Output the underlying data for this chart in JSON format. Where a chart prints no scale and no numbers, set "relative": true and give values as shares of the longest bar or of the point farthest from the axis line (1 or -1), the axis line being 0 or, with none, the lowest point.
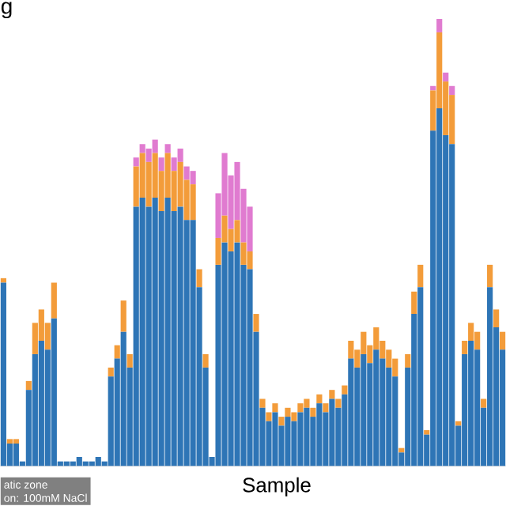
{
  "chart_data": {
    "type": "bar",
    "title": "g",
    "xlabel": "Sample",
    "relative": true,
    "stacked": true,
    "annotations": [
      "atic zone",
      "on: 100mM NaCl"
    ],
    "categories": [
      null,
      null,
      null,
      null,
      null,
      null,
      null,
      null,
      null,
      null,
      null,
      null,
      null,
      null,
      null,
      null,
      null,
      null,
      null,
      null,
      null,
      null,
      null,
      null,
      null,
      null,
      null,
      null,
      null,
      null,
      null,
      null,
      null,
      null,
      null,
      null,
      null,
      null,
      null,
      null,
      null,
      null,
      null,
      null,
      null,
      null,
      null,
      null,
      null,
      null,
      null,
      null,
      null,
      null,
      null,
      null,
      null,
      null,
      null,
      null,
      null,
      null,
      null,
      null,
      null,
      null,
      null,
      null,
      null,
      null,
      null,
      null,
      null,
      null,
      null,
      null,
      null,
      null,
      null,
      null
    ],
    "series": [
      {
        "color": "#2e75b6",
        "values": [
          0.41,
          0.05,
          0.05,
          0.01,
          0.17,
          0.25,
          0.28,
          0.26,
          0.33,
          0.01,
          0.01,
          0.01,
          0.02,
          0.01,
          0.01,
          0.02,
          0.01,
          0.2,
          0.24,
          0.3,
          0.22,
          0.58,
          0.6,
          0.58,
          0.6,
          0.57,
          0.6,
          0.57,
          0.58,
          0.55,
          0.55,
          0.4,
          0.22,
          0.02,
          0.45,
          0.5,
          0.48,
          0.5,
          0.45,
          0.44,
          0.3,
          0.13,
          0.1,
          0.12,
          0.09,
          0.11,
          0.1,
          0.12,
          0.13,
          0.11,
          0.14,
          0.12,
          0.15,
          0.13,
          0.16,
          0.24,
          0.22,
          0.25,
          0.23,
          0.26,
          0.24,
          0.22,
          0.2,
          0.03,
          0.22,
          0.34,
          0.4,
          0.07,
          0.75,
          0.8,
          0.74,
          0.72,
          0.09,
          0.25,
          0.28,
          0.26,
          0.13,
          0.4,
          0.31,
          0.26
        ]
      },
      {
        "color": "#f39c3a",
        "values": [
          0.01,
          0.01,
          0.01,
          0.0,
          0.02,
          0.07,
          0.07,
          0.06,
          0.08,
          0.0,
          0.0,
          0.0,
          0.0,
          0.0,
          0.0,
          0.0,
          0.0,
          0.02,
          0.03,
          0.07,
          0.03,
          0.09,
          0.1,
          0.1,
          0.1,
          0.09,
          0.1,
          0.09,
          0.1,
          0.09,
          0.08,
          0.04,
          0.03,
          0.0,
          0.06,
          0.06,
          0.05,
          0.05,
          0.05,
          0.04,
          0.04,
          0.02,
          0.02,
          0.02,
          0.02,
          0.02,
          0.02,
          0.02,
          0.02,
          0.02,
          0.02,
          0.02,
          0.02,
          0.02,
          0.02,
          0.04,
          0.04,
          0.05,
          0.04,
          0.05,
          0.04,
          0.04,
          0.04,
          0.01,
          0.03,
          0.05,
          0.05,
          0.01,
          0.09,
          0.17,
          0.12,
          0.11,
          0.01,
          0.03,
          0.04,
          0.04,
          0.02,
          0.05,
          0.04,
          0.04
        ]
      },
      {
        "color": "#e07bd0",
        "values": [
          0,
          0,
          0,
          0,
          0,
          0,
          0,
          0,
          0,
          0,
          0,
          0,
          0,
          0,
          0,
          0,
          0,
          0,
          0,
          0,
          0,
          0.02,
          0.02,
          0.03,
          0.03,
          0.03,
          0.02,
          0.03,
          0.03,
          0.03,
          0.03,
          0,
          0,
          0,
          0.1,
          0.14,
          0.12,
          0.13,
          0.12,
          0.1,
          0,
          0,
          0,
          0,
          0,
          0,
          0,
          0,
          0,
          0,
          0,
          0,
          0,
          0,
          0,
          0,
          0,
          0,
          0,
          0,
          0,
          0,
          0,
          0,
          0,
          0,
          0,
          0,
          0.01,
          0.03,
          0.02,
          0.02,
          0,
          0,
          0,
          0,
          0,
          0,
          0,
          0
        ]
      }
    ]
  }
}
